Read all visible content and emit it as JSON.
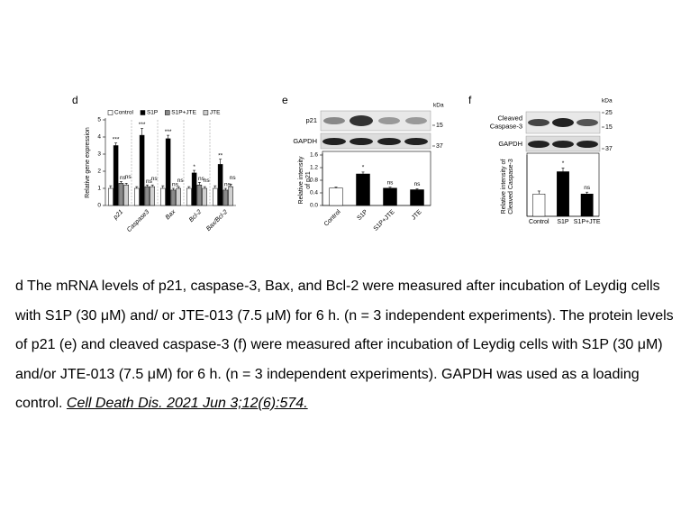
{
  "chart_data": [
    {
      "type": "bar",
      "panel": "d",
      "ylabel": [
        "Relative gene expression"
      ],
      "categories": [
        "p21",
        "Caspase3",
        "Bax",
        "Bcl-2",
        "Bax/Bcl-2"
      ],
      "ylim": [
        0,
        5
      ],
      "yticks": [
        0,
        1,
        2,
        3,
        4,
        5
      ],
      "legend": "top",
      "series": [
        {
          "name": "Control",
          "color": "#ffffff",
          "values": [
            1,
            1,
            1,
            1,
            1
          ],
          "errors": [
            0.15,
            0.1,
            0.15,
            0.1,
            0.15
          ]
        },
        {
          "name": "S1P",
          "color": "#000000",
          "values": [
            3.5,
            4.1,
            3.9,
            1.9,
            2.4
          ],
          "errors": [
            0.15,
            0.4,
            0.2,
            0.15,
            0.3
          ],
          "annotations": [
            "***",
            "***",
            "***",
            "*",
            "**"
          ]
        },
        {
          "name": "S1P+JTE",
          "color": "#8a8a8a",
          "values": [
            1.3,
            1.1,
            0.9,
            1.2,
            0.9
          ],
          "errors": [
            0.1,
            0.1,
            0.1,
            0.15,
            0.1
          ],
          "annotations": [
            "ns",
            "ns",
            "ns",
            "ns",
            "ns"
          ]
        },
        {
          "name": "JTE",
          "color": "#d0d0d0",
          "values": [
            1.2,
            1.1,
            1.0,
            1.0,
            1.1
          ],
          "errors": [
            0.1,
            0.1,
            0.1,
            0.1,
            0.15
          ],
          "annotations": [
            "ns",
            "ns",
            "ns",
            "ns",
            "ns"
          ]
        }
      ]
    },
    {
      "type": "bar",
      "panel": "e",
      "ylabel": [
        "Relative intensity",
        "of p21"
      ],
      "categories": [
        "Control",
        "S1P",
        "S1P+JTE",
        "JTE"
      ],
      "values": [
        0.55,
        1.0,
        0.55,
        0.5
      ],
      "errors": [
        0.03,
        0.06,
        0.03,
        0.03
      ],
      "colors": [
        "#ffffff",
        "#000000",
        "#000000",
        "#000000"
      ],
      "annotations": [
        null,
        "*",
        "ns",
        "ns"
      ],
      "ylim": [
        0,
        1.6
      ],
      "yticks": [
        {
          "value": 0,
          "label": "0.0"
        },
        0.4,
        0.8,
        1.2,
        1.6
      ]
    },
    {
      "type": "bar",
      "panel": "f",
      "ylabel": [
        "Relative intensity of",
        "Cleaved Caspase-3"
      ],
      "categories": [
        "Control",
        "S1P",
        "S1P+JTE"
      ],
      "values": [
        0.6,
        1.2,
        0.6
      ],
      "errors": [
        0.08,
        0.1,
        0.05
      ],
      "colors": [
        "#ffffff",
        "#000000",
        "#000000"
      ],
      "annotations": [
        null,
        "*",
        "ns"
      ],
      "ylim": [
        0,
        1.6
      ]
    }
  ],
  "blots": [
    {
      "kda": "kDa",
      "rows": [
        {
          "label": [
            "p21"
          ],
          "marker": "15"
        },
        {
          "label": [
            "GAPDH"
          ],
          "marker": "37"
        }
      ]
    },
    {
      "kda": "kDa",
      "top_marker": "25",
      "rows": [
        {
          "label": [
            "Cleaved",
            "Caspase-3"
          ],
          "marker": "15"
        },
        {
          "label": [
            "GAPDH"
          ],
          "marker": "37"
        }
      ]
    }
  ],
  "caption": {
    "text": "d The mRNA levels of p21, caspase-3, Bax, and Bcl-2 were measured after incubation of Leydig cells with S1P (30 μM) and/ or JTE-013 (7.5 μM) for 6 h. (n = 3 independent experiments). The protein levels of p21 (e) and cleaved caspase-3 (f) were measured after incubation of Leydig cells with S1P (30 μM) and/or JTE-013 (7.5 μM) for 6 h. (n = 3 independent experiments). GAPDH was used as a loading control.",
    "citation": "Cell Death Dis. 2021 Jun 3;12(6):574."
  }
}
